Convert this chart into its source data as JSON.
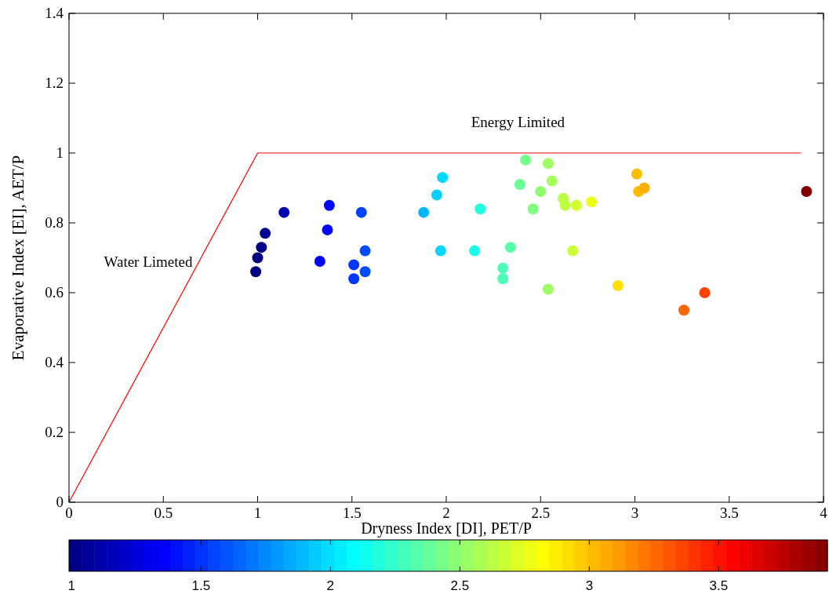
{
  "chart_data": {
    "type": "scatter",
    "xlabel": "Dryness Index [DI], PET/P",
    "ylabel": "Evaporative Index [EI], AET/P",
    "xlim": [
      0,
      4
    ],
    "xticks": [
      0,
      0.5,
      1,
      1.5,
      2,
      2.5,
      3,
      3.5,
      4
    ],
    "ylim": [
      0,
      1.4
    ],
    "yticks": [
      0,
      0.2,
      0.4,
      0.6,
      0.8,
      1,
      1.2,
      1.4
    ],
    "grid": false,
    "clim": [
      0.99,
      3.92
    ],
    "cticks": [
      1,
      1.5,
      2,
      2.5,
      3,
      3.5
    ],
    "annotations": [
      "Energy Limited",
      "Water Limeted"
    ],
    "series": [
      {
        "type": "line",
        "color": "#ff0000",
        "x": [
          0,
          1,
          3.88
        ],
        "values": [
          0,
          1,
          1
        ]
      },
      {
        "marker": "circle",
        "x": [
          0.99,
          1.0,
          1.02,
          1.04,
          1.14,
          1.33,
          1.37,
          1.38,
          1.51,
          1.51,
          1.55,
          1.57,
          1.57,
          1.88,
          1.95,
          1.97,
          1.98,
          2.15,
          2.18,
          2.3,
          2.3,
          2.34,
          2.39,
          2.42,
          2.46,
          2.5,
          2.54,
          2.54,
          2.56,
          2.62,
          2.63,
          2.67,
          2.69,
          2.77,
          2.91,
          3.01,
          3.02,
          3.05,
          3.26,
          3.37,
          3.91
        ],
        "values": [
          0.66,
          0.7,
          0.73,
          0.77,
          0.83,
          0.69,
          0.78,
          0.85,
          0.64,
          0.68,
          0.83,
          0.72,
          0.66,
          0.83,
          0.88,
          0.72,
          0.93,
          0.72,
          0.84,
          0.67,
          0.64,
          0.73,
          0.91,
          0.98,
          0.84,
          0.89,
          0.97,
          0.61,
          0.92,
          0.87,
          0.85,
          0.72,
          0.85,
          0.86,
          0.62,
          0.94,
          0.89,
          0.9,
          0.55,
          0.6,
          0.89
        ],
        "colors": [
          "#000080",
          "#000083",
          "#00008a",
          "#000091",
          "#0000b4",
          "#0000f6",
          "#0005ff",
          "#0008ff",
          "#0036ff",
          "#0036ff",
          "#0043ff",
          "#004aff",
          "#004aff",
          "#00b6ff",
          "#00cfff",
          "#00d6ff",
          "#00d9ff",
          "#15ffea",
          "#20ffdf",
          "#4affb5",
          "#4affb5",
          "#57ffa8",
          "#69ff96",
          "#73ff8c",
          "#81ff7e",
          "#8fff70",
          "#9dff62",
          "#9dff62",
          "#a4ff5b",
          "#b9ff46",
          "#bcff43",
          "#caff35",
          "#d1ff2e",
          "#edff12",
          "#ffe000",
          "#ffbd00",
          "#ffba00",
          "#ffaf00",
          "#ff6600",
          "#ff4000",
          "#830000"
        ]
      }
    ]
  }
}
